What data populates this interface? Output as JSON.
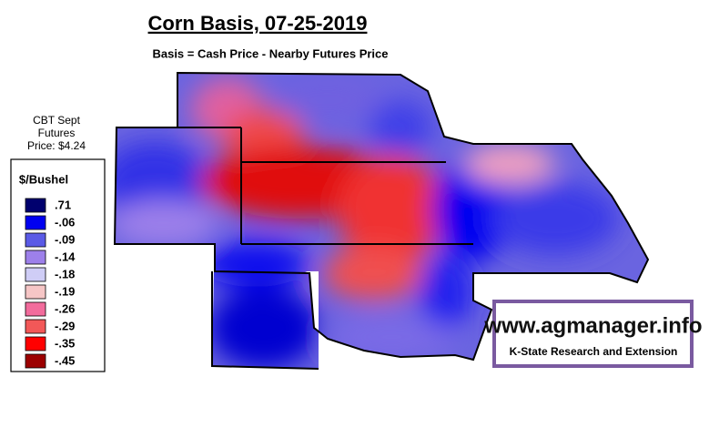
{
  "title": "Corn Basis, 07-25-2019",
  "subtitle": "Basis = Cash Price - Nearby Futures Price",
  "futures": [
    "CBT Sept",
    "Futures",
    "Price: $4.24"
  ],
  "legend": {
    "title": "$/Bushel",
    "items": [
      {
        "label": ".71",
        "color": "#00006e"
      },
      {
        "label": "-.06",
        "color": "#0000f0"
      },
      {
        "label": "-.09",
        "color": "#5a5ae6"
      },
      {
        "label": "-.14",
        "color": "#9d80ea"
      },
      {
        "label": "-.18",
        "color": "#cfcdf6"
      },
      {
        "label": "-.19",
        "color": "#f6c6c6"
      },
      {
        "label": "-.26",
        "color": "#f26c9c"
      },
      {
        "label": "-.29",
        "color": "#f25858"
      },
      {
        "label": "-.35",
        "color": "#ff0000"
      },
      {
        "label": "-.45",
        "color": "#9c0000"
      }
    ]
  },
  "logo": {
    "url": "www.agmanager.info",
    "org": "K-State Research and Extension"
  }
}
